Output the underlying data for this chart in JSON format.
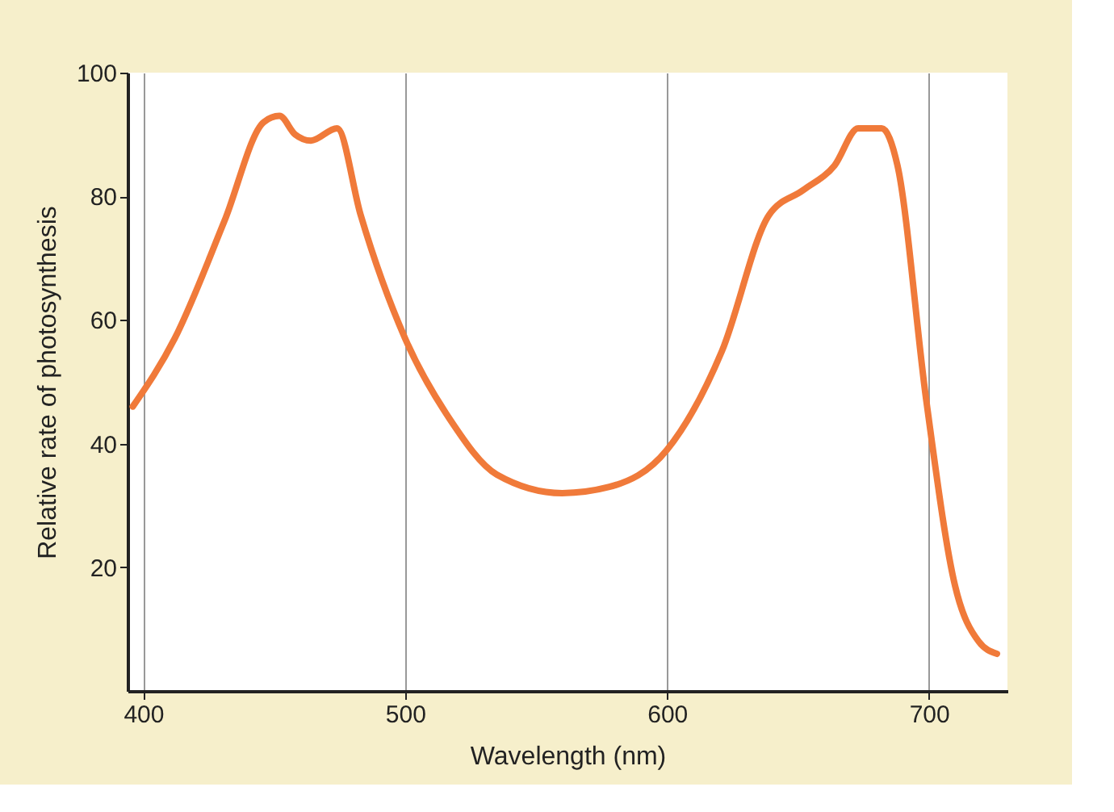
{
  "chart_data": {
    "type": "line",
    "xlabel": "Wavelength (nm)",
    "ylabel": "Relative rate of photosynthesis",
    "x": [
      396,
      412,
      431,
      446,
      452,
      458,
      464,
      474,
      483,
      500,
      517,
      535,
      560,
      578,
      600,
      621,
      639,
      652,
      664,
      673,
      682,
      688,
      699,
      710,
      719,
      726
    ],
    "series": [
      {
        "color": "#f07a3a",
        "values": [
          46,
          57,
          76,
          92,
          93,
          90,
          89,
          91,
          77,
          57,
          44,
          35,
          32,
          33,
          39,
          55,
          77,
          81,
          85,
          91,
          91,
          85,
          47,
          17,
          8,
          6
        ]
      }
    ],
    "xlim": [
      394,
      730
    ],
    "xticks": [
      400,
      500,
      600,
      700
    ],
    "ylim": [
      0,
      100
    ],
    "yticks": [
      20,
      40,
      60,
      80,
      100
    ],
    "grid": "x",
    "marker": "none",
    "line_style": "solid"
  }
}
